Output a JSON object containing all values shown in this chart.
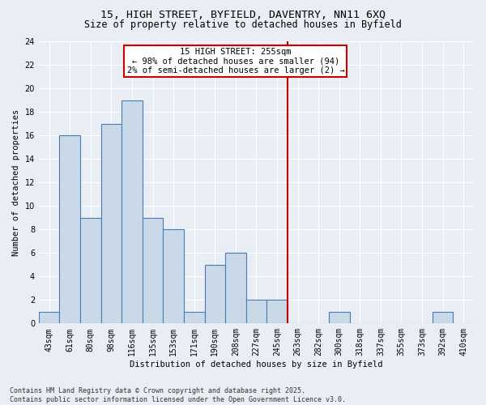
{
  "title_line1": "15, HIGH STREET, BYFIELD, DAVENTRY, NN11 6XQ",
  "title_line2": "Size of property relative to detached houses in Byfield",
  "xlabel": "Distribution of detached houses by size in Byfield",
  "ylabel": "Number of detached properties",
  "categories": [
    "43sqm",
    "61sqm",
    "80sqm",
    "98sqm",
    "116sqm",
    "135sqm",
    "153sqm",
    "171sqm",
    "190sqm",
    "208sqm",
    "227sqm",
    "245sqm",
    "263sqm",
    "282sqm",
    "300sqm",
    "318sqm",
    "337sqm",
    "355sqm",
    "373sqm",
    "392sqm",
    "410sqm"
  ],
  "values": [
    1,
    16,
    9,
    17,
    19,
    9,
    8,
    1,
    5,
    6,
    2,
    2,
    0,
    0,
    1,
    0,
    0,
    0,
    0,
    1,
    0
  ],
  "bar_color": "#c9d9e8",
  "bar_edge_color": "#4a7ab5",
  "background_color": "#e8eef4",
  "gridcolor": "#ffffff",
  "vline_x": 11.5,
  "vline_color": "#cc0000",
  "annotation_text": "15 HIGH STREET: 255sqm\n← 98% of detached houses are smaller (94)\n2% of semi-detached houses are larger (2) →",
  "annotation_box_color": "#cc0000",
  "annotation_bg_color": "#ffffff",
  "ylim": [
    0,
    24
  ],
  "yticks": [
    0,
    2,
    4,
    6,
    8,
    10,
    12,
    14,
    16,
    18,
    20,
    22,
    24
  ],
  "footnote": "Contains HM Land Registry data © Crown copyright and database right 2025.\nContains public sector information licensed under the Open Government Licence v3.0.",
  "title_fontsize": 9.5,
  "subtitle_fontsize": 8.5,
  "axis_label_fontsize": 7.5,
  "tick_fontsize": 7,
  "annotation_fontsize": 7.5,
  "footnote_fontsize": 6
}
